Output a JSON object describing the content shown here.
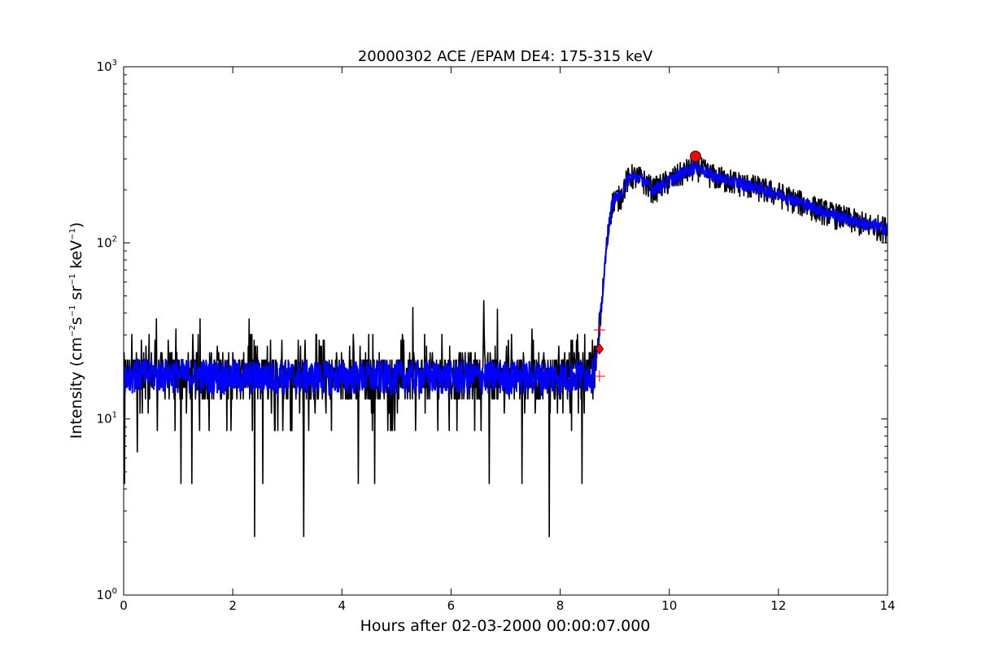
{
  "chart_data": {
    "type": "line",
    "title": "20000302 ACE /EPAM DE4: 175-315 keV",
    "xlabel": "Hours after 02-03-2000 00:00:07.000",
    "ylabel": {
      "prefix": "Intensity (cm",
      "sup1": "−2",
      "part2": "s",
      "sup2": "−1",
      "part3": " sr",
      "sup3": "−1",
      "part4": " keV",
      "sup4": "−1",
      "suffix": ")"
    },
    "xlim": [
      0,
      14
    ],
    "ylim": [
      1,
      1000
    ],
    "yscale": "log",
    "grid": false,
    "x_ticks": [
      "0",
      "2",
      "4",
      "6",
      "8",
      "10",
      "12",
      "14"
    ],
    "y_ticks": [
      {
        "base": "10",
        "exp": "0"
      },
      {
        "base": "10",
        "exp": "1"
      },
      {
        "base": "10",
        "exp": "2"
      },
      {
        "base": "10",
        "exp": "3"
      }
    ],
    "series": [
      {
        "role": "raw-intensity",
        "color": "#000000",
        "profile": [
          [
            0,
            18
          ],
          [
            0.5,
            18
          ],
          [
            1,
            18
          ],
          [
            2,
            17.5
          ],
          [
            3,
            17.5
          ],
          [
            4,
            17.5
          ],
          [
            5,
            17.5
          ],
          [
            6,
            17.5
          ],
          [
            7,
            17.5
          ],
          [
            8,
            17.5
          ],
          [
            8.6,
            18
          ],
          [
            8.65,
            22
          ],
          [
            8.7,
            26
          ],
          [
            8.75,
            42
          ],
          [
            8.8,
            62
          ],
          [
            8.85,
            95
          ],
          [
            8.9,
            130
          ],
          [
            8.95,
            165
          ],
          [
            9.0,
            180
          ],
          [
            9.1,
            180
          ],
          [
            9.2,
            220
          ],
          [
            9.3,
            240
          ],
          [
            9.5,
            230
          ],
          [
            9.7,
            200
          ],
          [
            10.0,
            225
          ],
          [
            10.3,
            255
          ],
          [
            10.5,
            270
          ],
          [
            10.8,
            240
          ],
          [
            11.0,
            230
          ],
          [
            11.5,
            210
          ],
          [
            12.0,
            190
          ],
          [
            12.5,
            165
          ],
          [
            13.0,
            145
          ],
          [
            13.5,
            130
          ],
          [
            14.0,
            120
          ]
        ],
        "dips": [
          [
            0.25,
            6.5
          ],
          [
            1.05,
            4.3
          ],
          [
            1.25,
            4.3
          ],
          [
            2.4,
            2.15
          ],
          [
            2.55,
            4.3
          ],
          [
            3.3,
            2.15
          ],
          [
            4.3,
            4.3
          ],
          [
            4.6,
            4.3
          ],
          [
            6.6,
            4.3
          ],
          [
            6.7,
            4.3
          ],
          [
            7.3,
            4.3
          ],
          [
            7.8,
            2.15
          ],
          [
            8.4,
            4.3
          ],
          [
            0.02,
            4.3
          ]
        ],
        "spikes": [
          [
            0.6,
            37
          ],
          [
            1.4,
            37
          ],
          [
            2.3,
            37
          ],
          [
            5.3,
            43
          ],
          [
            6.6,
            47
          ],
          [
            6.85,
            42
          ],
          [
            8.72,
            40
          ]
        ]
      },
      {
        "role": "smoothed-intensity",
        "color": "#0000ff",
        "profile": [
          [
            0,
            18
          ],
          [
            1,
            18
          ],
          [
            2,
            17.5
          ],
          [
            3,
            17.5
          ],
          [
            4,
            17.5
          ],
          [
            5,
            17.5
          ],
          [
            6,
            17.5
          ],
          [
            7,
            17.5
          ],
          [
            8,
            17.5
          ],
          [
            8.6,
            18
          ],
          [
            8.65,
            22
          ],
          [
            8.7,
            26
          ],
          [
            8.75,
            42
          ],
          [
            8.8,
            62
          ],
          [
            8.85,
            95
          ],
          [
            8.9,
            130
          ],
          [
            8.95,
            165
          ],
          [
            9.0,
            180
          ],
          [
            9.1,
            180
          ],
          [
            9.2,
            220
          ],
          [
            9.3,
            240
          ],
          [
            9.5,
            230
          ],
          [
            9.7,
            200
          ],
          [
            10.0,
            225
          ],
          [
            10.3,
            255
          ],
          [
            10.5,
            270
          ],
          [
            10.8,
            240
          ],
          [
            11.0,
            230
          ],
          [
            11.5,
            210
          ],
          [
            12.0,
            190
          ],
          [
            12.5,
            165
          ],
          [
            13.0,
            145
          ],
          [
            13.5,
            130
          ],
          [
            14.0,
            120
          ]
        ]
      }
    ],
    "markers": [
      {
        "shape": "diamond",
        "x": 8.72,
        "y": 25,
        "color": "#ff0000"
      },
      {
        "shape": "circle",
        "x": 10.48,
        "y": 310,
        "color": "#ff0000"
      },
      {
        "shape": "plus",
        "x": 8.72,
        "y": 32,
        "color": "#ff0000"
      },
      {
        "shape": "plus",
        "x": 8.72,
        "y": 17.5,
        "color": "#ff0000"
      }
    ]
  }
}
